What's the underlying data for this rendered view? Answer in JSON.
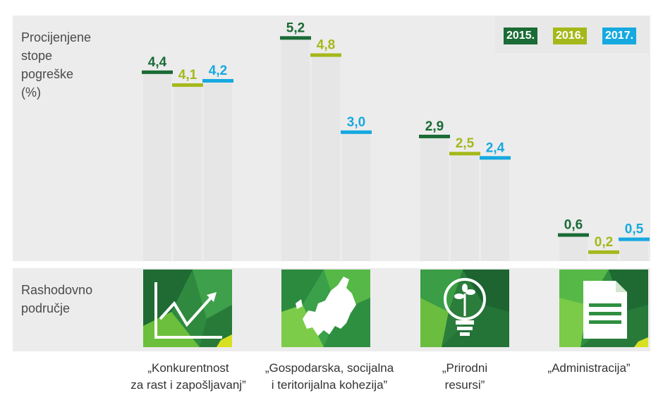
{
  "labels": {
    "y_title": [
      "Procijenjene",
      "stope",
      "pogreške",
      "(%)"
    ],
    "x_title": [
      "Rashodovno",
      "područje"
    ]
  },
  "colors": {
    "y2015": "#1a6b35",
    "y2016": "#a5b81b",
    "y2017": "#16a9e0",
    "panel": "#ececec",
    "bar": "#e6e6e6"
  },
  "chart_data": {
    "type": "bar",
    "categories": [
      [
        "„Konkurentnost",
        "za rast i zapošljavanj”"
      ],
      [
        "„Gospodarska, socijalna",
        "i teritorijalna kohezija”"
      ],
      [
        "„Prirodni",
        "resursi”"
      ],
      [
        "„Administracija”"
      ]
    ],
    "category_icons": [
      "growth-chart-icon",
      "europe-map-icon",
      "lightbulb-plant-icon",
      "document-icon"
    ],
    "series": [
      {
        "name": "2015.",
        "values": [
          4.4,
          5.2,
          2.9,
          0.6
        ],
        "labels": [
          "4,4",
          "5,2",
          "2,9",
          "0,6"
        ]
      },
      {
        "name": "2016.",
        "values": [
          4.1,
          4.8,
          2.5,
          0.2
        ],
        "labels": [
          "4,1",
          "4,8",
          "2,5",
          "0,2"
        ]
      },
      {
        "name": "2017.",
        "values": [
          4.2,
          3.0,
          2.4,
          0.5
        ],
        "labels": [
          "4,2",
          "3,0",
          "2,4",
          "0,5"
        ]
      }
    ],
    "ylim": [
      0,
      5.6
    ],
    "legend_position": "top-right",
    "grid": false
  }
}
